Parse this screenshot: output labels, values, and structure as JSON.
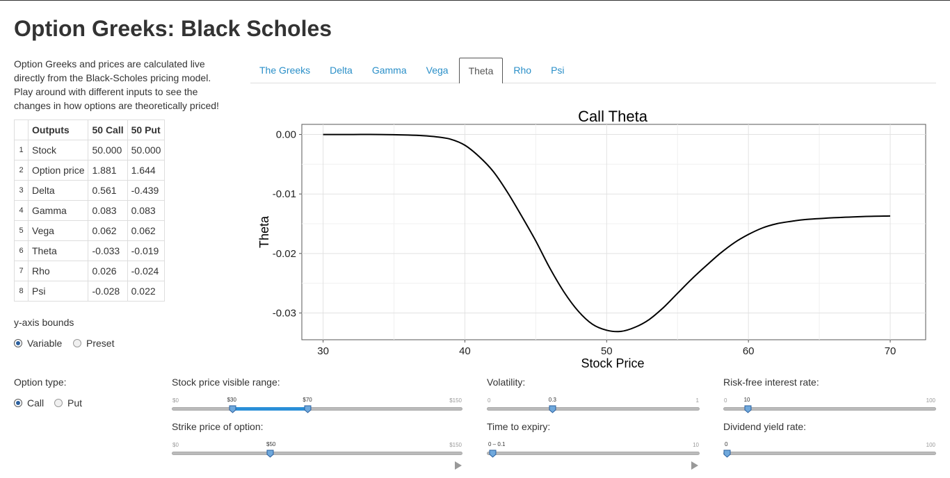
{
  "page": {
    "title": "Option Greeks: Black Scholes",
    "description": "Option Greeks and prices are calculated live directly from the Black-Scholes pricing model. Play around with different inputs to see the changes in how options are theoretically priced!"
  },
  "outputs_table": {
    "headers": [
      "",
      "Outputs",
      "50 Call",
      "50 Put"
    ],
    "rows": [
      [
        "1",
        "Stock",
        "50.000",
        "50.000"
      ],
      [
        "2",
        "Option price",
        "1.881",
        "1.644"
      ],
      [
        "3",
        "Delta",
        "0.561",
        "-0.439"
      ],
      [
        "4",
        "Gamma",
        "0.083",
        "0.083"
      ],
      [
        "5",
        "Vega",
        "0.062",
        "0.062"
      ],
      [
        "6",
        "Theta",
        "-0.033",
        "-0.019"
      ],
      [
        "7",
        "Rho",
        "0.026",
        "-0.024"
      ],
      [
        "8",
        "Psi",
        "-0.028",
        "0.022"
      ]
    ]
  },
  "y_axis_bounds": {
    "label": "y-axis bounds",
    "options": [
      "Variable",
      "Preset"
    ],
    "selected": "Variable"
  },
  "option_type": {
    "label": "Option type:",
    "options": [
      "Call",
      "Put"
    ],
    "selected": "Call"
  },
  "tabs": {
    "items": [
      "The Greeks",
      "Delta",
      "Gamma",
      "Vega",
      "Theta",
      "Rho",
      "Psi"
    ],
    "active": "Theta"
  },
  "chart_data": {
    "type": "line",
    "title": "Call  Theta",
    "xlabel": "Stock Price",
    "ylabel": "Theta",
    "xlim": [
      28.5,
      72.5
    ],
    "ylim": [
      -0.0345,
      0.0017
    ],
    "xticks": [
      30,
      40,
      50,
      60,
      70
    ],
    "yticks": [
      0.0,
      -0.01,
      -0.02,
      -0.03
    ],
    "ytick_labels": [
      "0.00",
      "-0.01",
      "-0.02",
      "-0.03"
    ],
    "grid": true,
    "series": [
      {
        "x": [
          30,
          32,
          34,
          36,
          37,
          38,
          39,
          40,
          41,
          42,
          43,
          44,
          45,
          46,
          47,
          48,
          49,
          50,
          51,
          52,
          53,
          54,
          55,
          56,
          57,
          58,
          59,
          60,
          61,
          62,
          63,
          64,
          66,
          68,
          70
        ],
        "y": [
          0.0,
          0.0,
          0.0,
          -0.0001,
          -0.0002,
          -0.0004,
          -0.0008,
          -0.0018,
          -0.0037,
          -0.0062,
          -0.0097,
          -0.0137,
          -0.0179,
          -0.0225,
          -0.0265,
          -0.0297,
          -0.0319,
          -0.0329,
          -0.0331,
          -0.0324,
          -0.0311,
          -0.0291,
          -0.0267,
          -0.0243,
          -0.0221,
          -0.02,
          -0.0182,
          -0.0168,
          -0.0157,
          -0.015,
          -0.0146,
          -0.0143,
          -0.014,
          -0.0138,
          -0.0137
        ]
      }
    ]
  },
  "sliders": {
    "stock_range": {
      "label": "Stock price visible range:",
      "min_label": "$0",
      "max_label": "$150",
      "min": 0,
      "max": 150,
      "from": 30,
      "to": 70,
      "from_label": "$30",
      "to_label": "$70"
    },
    "strike": {
      "label": "Strike price of option:",
      "min_label": "$0",
      "max_label": "$150",
      "min": 0,
      "max": 150,
      "value": 50,
      "value_label": "$50"
    },
    "volatility": {
      "label": "Volatility:",
      "min_label": "0",
      "max_label": "1",
      "min": 0,
      "max": 1,
      "value": 0.3,
      "value_label": "0.3"
    },
    "time_to_expiry": {
      "label": "Time to expiry:",
      "max_label": "10",
      "min": 0,
      "max": 10,
      "value": 0.1,
      "value_label": "0 – 0.1"
    },
    "risk_free": {
      "label": "Risk-free interest rate:",
      "min_label": "0",
      "max_label": "100",
      "min": 0,
      "max": 100,
      "value": 10,
      "value_label": "10"
    },
    "dividend": {
      "label": "Dividend yield rate:",
      "max_label": "100",
      "min": 0,
      "max": 100,
      "value": 0,
      "value_label": "0"
    }
  }
}
